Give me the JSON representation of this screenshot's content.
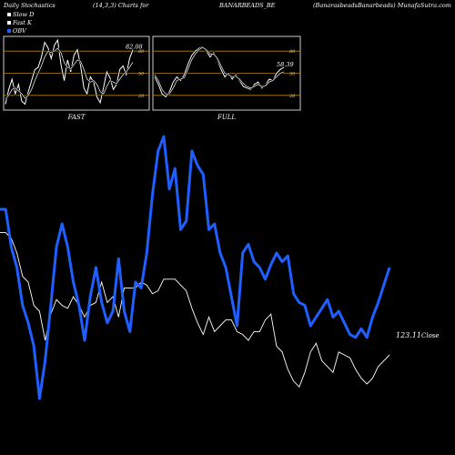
{
  "header": {
    "title": "Daily Stochastics",
    "params": "(14,3,3) Charts for",
    "symbol": "BANARBEADS_BE",
    "source": "(BanarasbeadsBanarbeads) MunafaSutra.com"
  },
  "legend": [
    {
      "label": "Slow  D",
      "color": "#ffffff"
    },
    {
      "label": "Fast K",
      "color": "#ffffff"
    },
    {
      "label": "OBV",
      "color": "#1f5fff"
    }
  ],
  "colors": {
    "obv": "#1f5fff",
    "price": "#ffffff",
    "band": "#b8860b",
    "frame": "#cccccc"
  },
  "chart_data": [
    {
      "type": "line",
      "xlabel": "FAST",
      "levels": [
        20,
        50,
        80
      ],
      "ylim": [
        0,
        100
      ],
      "last_value_label": "82.08",
      "series": [
        {
          "values": [
            8,
            28,
            42,
            22,
            35,
            12,
            8,
            25,
            40,
            55,
            58,
            72,
            92,
            85,
            70,
            88,
            95,
            62,
            40,
            68,
            52,
            75,
            82,
            60,
            30,
            22,
            45,
            38,
            18,
            10,
            30,
            52,
            44,
            28,
            35,
            55,
            60,
            48,
            70,
            82
          ]
        },
        {
          "values": [
            15,
            20,
            28,
            30,
            26,
            22,
            16,
            20,
            28,
            40,
            50,
            60,
            72,
            80,
            78,
            80,
            84,
            78,
            64,
            58,
            56,
            62,
            68,
            66,
            55,
            42,
            38,
            40,
            35,
            25,
            22,
            32,
            40,
            38,
            36,
            42,
            48,
            52,
            58,
            65
          ]
        }
      ]
    },
    {
      "type": "line",
      "xlabel": "FULL",
      "levels": [
        20,
        50,
        80
      ],
      "ylim": [
        0,
        100
      ],
      "last_value_label": "58.39",
      "series": [
        {
          "values": [
            45,
            35,
            22,
            18,
            25,
            38,
            45,
            40,
            48,
            62,
            74,
            80,
            84,
            86,
            80,
            72,
            78,
            68,
            55,
            45,
            50,
            42,
            48,
            40,
            32,
            30,
            28,
            35,
            38,
            30,
            34,
            42,
            40,
            50,
            55,
            58
          ]
        },
        {
          "values": [
            48,
            40,
            28,
            22,
            22,
            30,
            40,
            42,
            44,
            55,
            68,
            76,
            82,
            85,
            82,
            76,
            76,
            70,
            60,
            50,
            48,
            45,
            46,
            42,
            36,
            32,
            30,
            32,
            35,
            32,
            33,
            38,
            40,
            45,
            50,
            52
          ]
        }
      ]
    },
    {
      "type": "line",
      "last_value_label": "123.11",
      "last_value_suffix": "Close",
      "series": [
        {
          "name": "OBV",
          "values": [
            75,
            75,
            62,
            55,
            42,
            36,
            28,
            10,
            23,
            42,
            62,
            70,
            62,
            50,
            42,
            30,
            45,
            55,
            43,
            36,
            40,
            58,
            40,
            33,
            50,
            48,
            60,
            80,
            95,
            100,
            82,
            89,
            68,
            71,
            95,
            90,
            87,
            68,
            70,
            60,
            55,
            45,
            35,
            60,
            63,
            57,
            55,
            51,
            56,
            60,
            57,
            59,
            46,
            43,
            42,
            35,
            38,
            41,
            44,
            38,
            40,
            36,
            32,
            31,
            34,
            31,
            38,
            43,
            49,
            55
          ]
        },
        {
          "name": "Close",
          "values": [
            67,
            67,
            65,
            60,
            52,
            50,
            42,
            40,
            30,
            39,
            44,
            42,
            41,
            45,
            42,
            38,
            42,
            43,
            50,
            43,
            45,
            38,
            48,
            48,
            48,
            50,
            49,
            46,
            47,
            51,
            51,
            51,
            49,
            47,
            41,
            36,
            32,
            38,
            33,
            35,
            37,
            37,
            33,
            32,
            30,
            33,
            33,
            37,
            39,
            28,
            26,
            20,
            16,
            14,
            19,
            26,
            29,
            23,
            21,
            19,
            26,
            25,
            24,
            20,
            17,
            15,
            17,
            21,
            23,
            25
          ]
        }
      ]
    }
  ]
}
